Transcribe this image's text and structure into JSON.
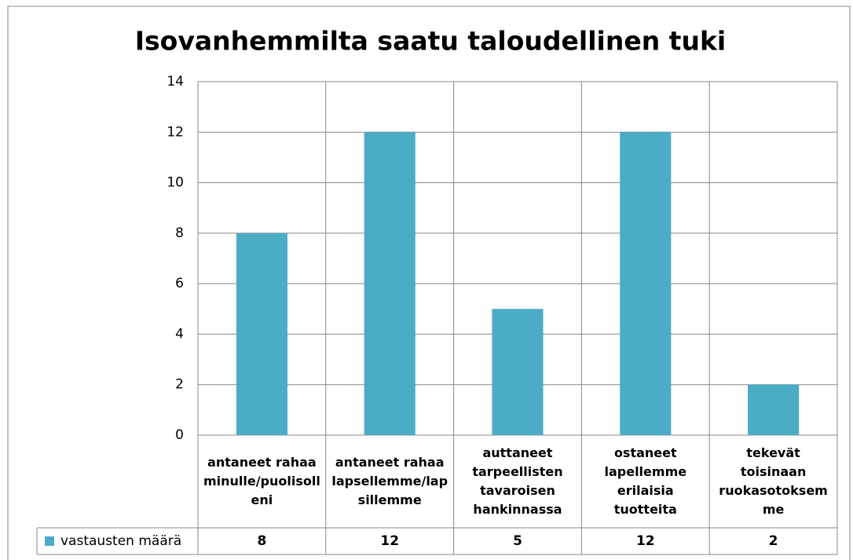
{
  "chart_data": {
    "type": "bar",
    "title": "Isovanhemmilta saatu taloudellinen tuki",
    "categories": [
      "antaneet rahaa minulle/puolisolleni",
      "antaneet rahaa lapsellemme/lapsillemme",
      "auttaneet tarpeellisten tavaroisen hankinnassa",
      "ostaneet lapellemme erilaisia tuotteita",
      "tekevät toisinaan ruokasotoksemme"
    ],
    "series": [
      {
        "name": "vastausten määrä",
        "color": "#4bacc6",
        "values": [
          8,
          12,
          5,
          12,
          2
        ]
      }
    ],
    "ylim": [
      0,
      14
    ],
    "yticks": [
      0,
      2,
      4,
      6,
      8,
      10,
      12,
      14
    ],
    "grid": true,
    "data_table": true
  }
}
